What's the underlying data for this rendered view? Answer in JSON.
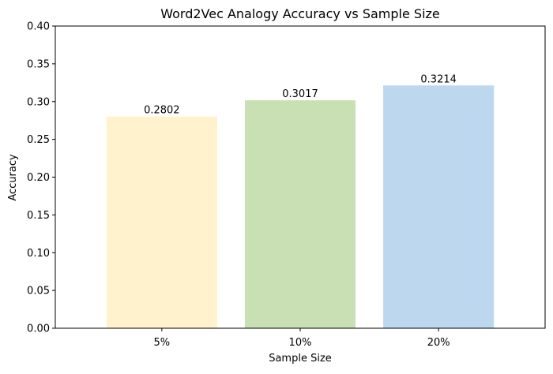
{
  "chart_data": {
    "type": "bar",
    "title": "Word2Vec Analogy Accuracy vs Sample Size",
    "xlabel": "Sample Size",
    "ylabel": "Accuracy",
    "categories": [
      "5%",
      "10%",
      "20%"
    ],
    "values": [
      0.2802,
      0.3017,
      0.3214
    ],
    "data_labels": [
      "0.2802",
      "0.3017",
      "0.3214"
    ],
    "bar_colors": [
      "#fff2cc",
      "#c9e0b5",
      "#bdd7ee"
    ],
    "ylim": [
      0,
      0.4
    ],
    "yticks": [
      0.0,
      0.05,
      0.1,
      0.15,
      0.2,
      0.25,
      0.3,
      0.35,
      0.4
    ],
    "ytick_labels": [
      "0.00",
      "0.05",
      "0.10",
      "0.15",
      "0.20",
      "0.25",
      "0.30",
      "0.35",
      "0.40"
    ],
    "grid": false,
    "legend": "none"
  }
}
